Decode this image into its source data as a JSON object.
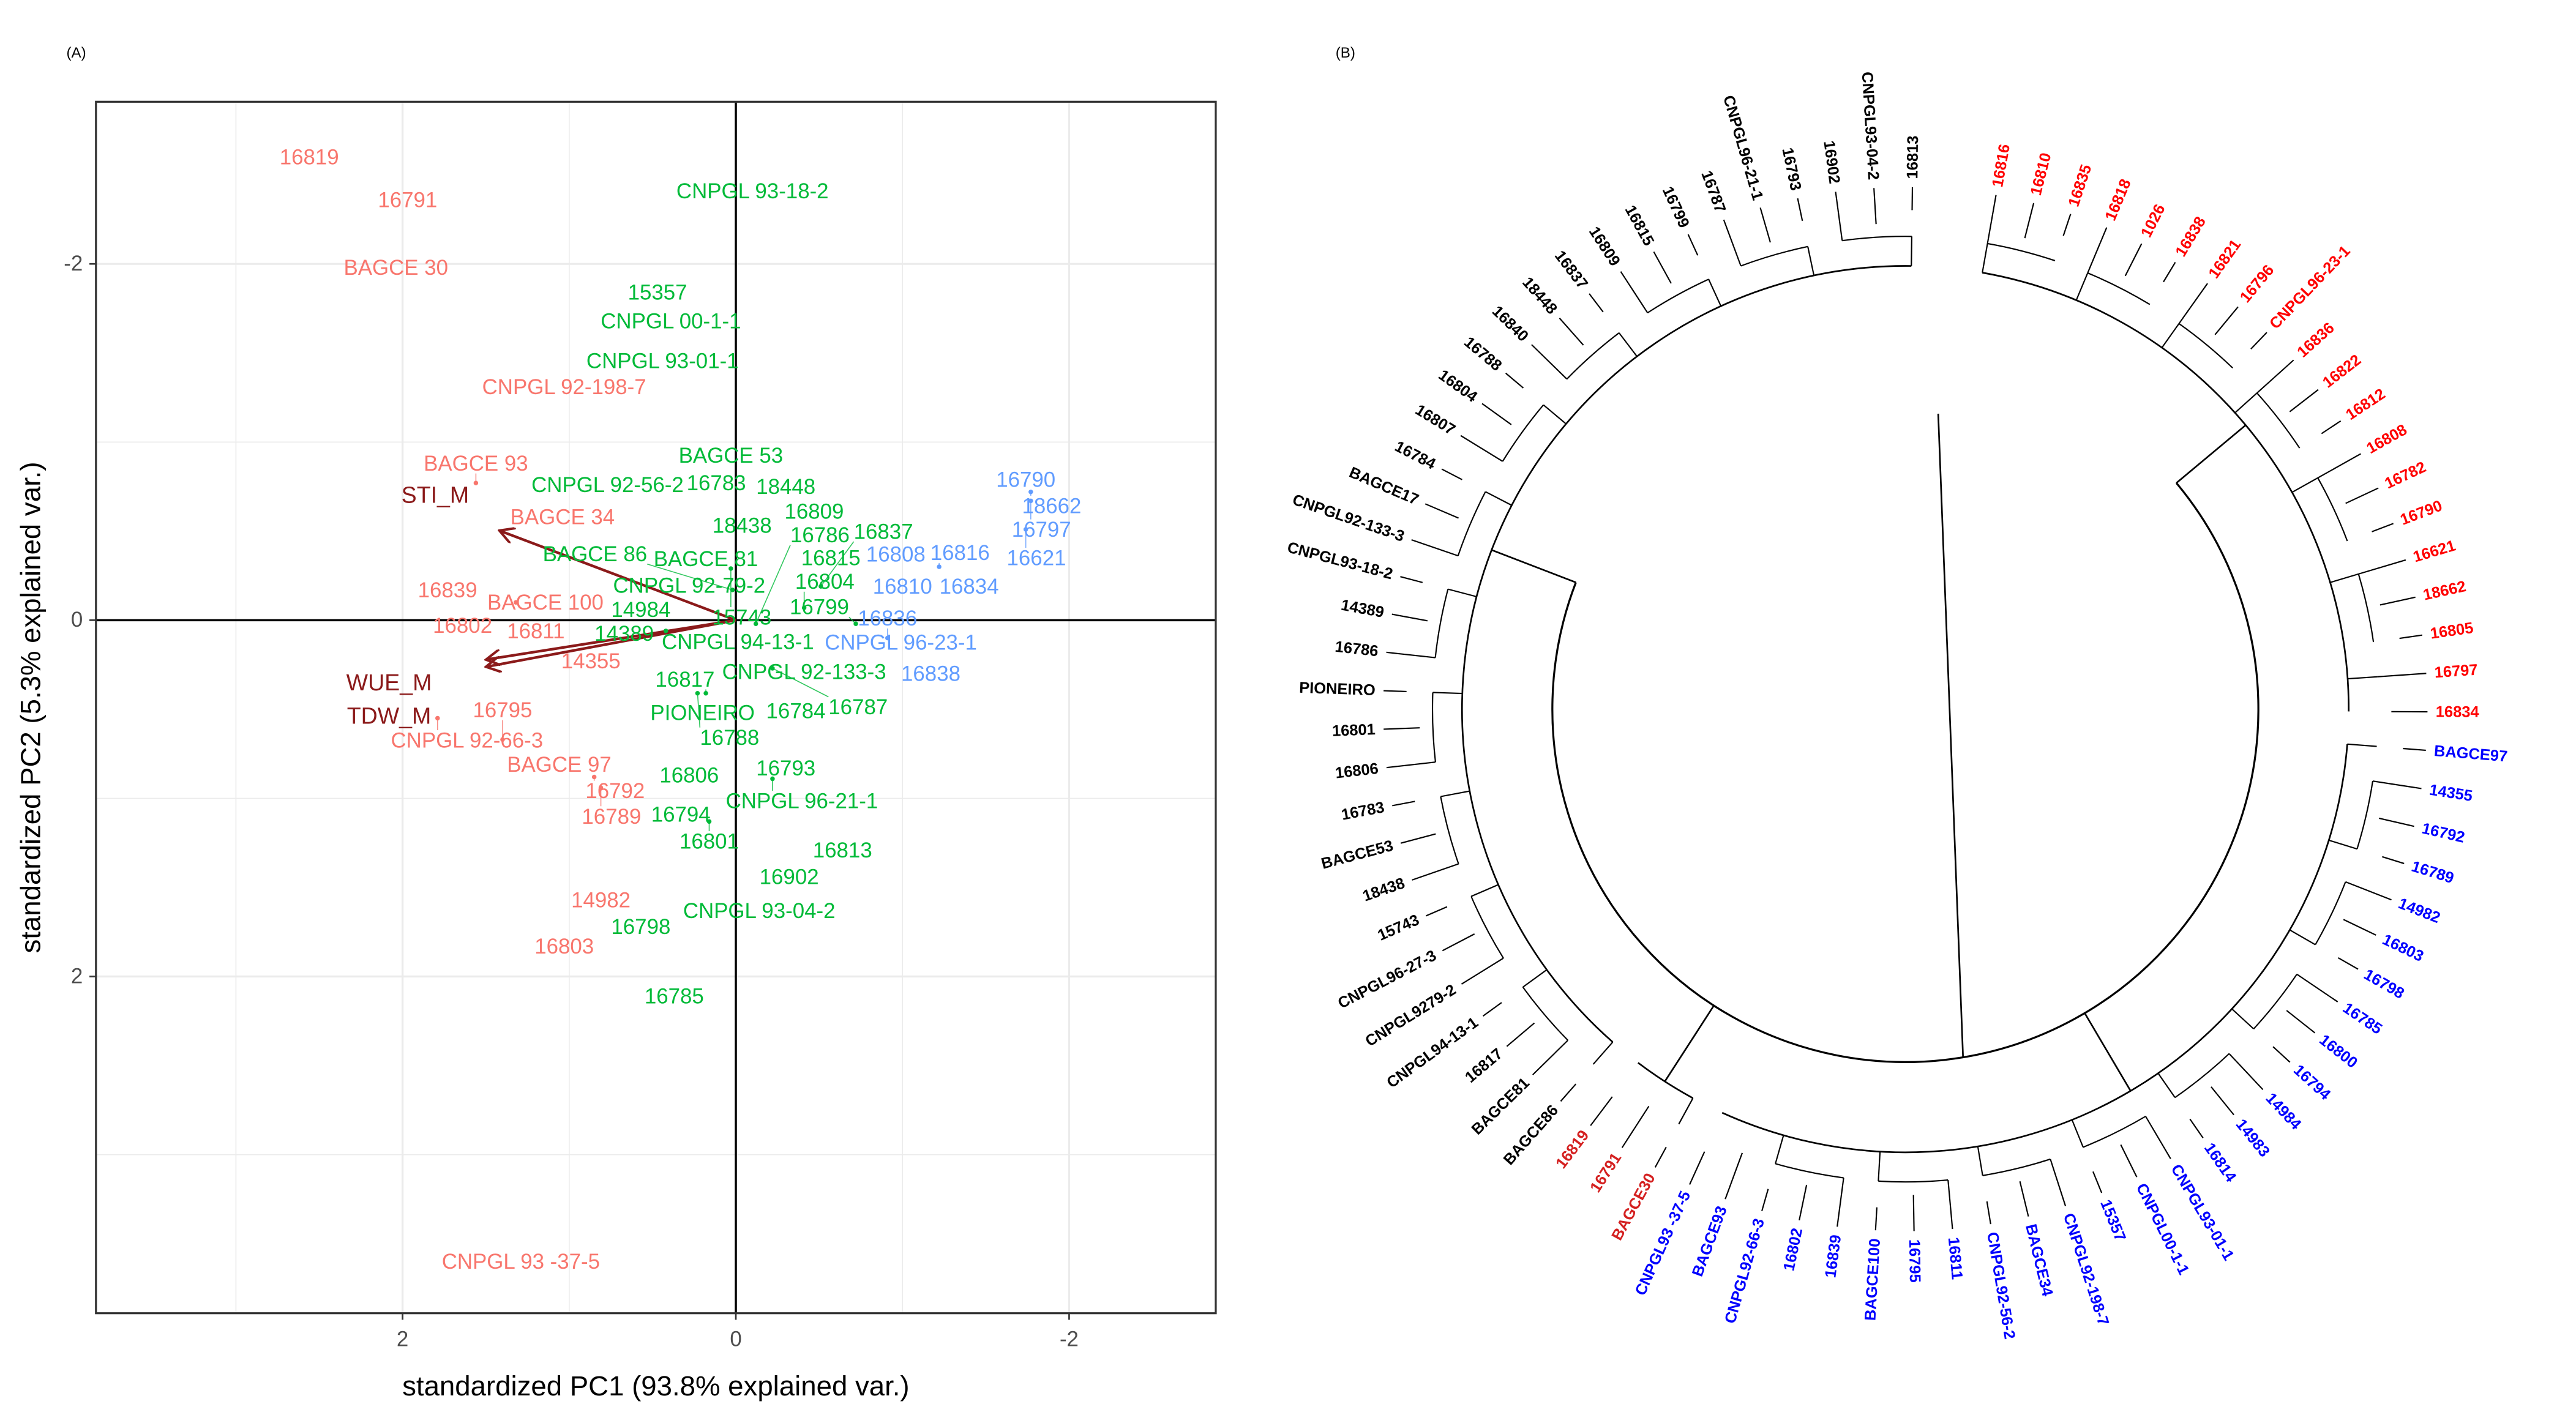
{
  "chart_data": [
    {
      "type": "scatter",
      "panel_label": "(A)",
      "title": "",
      "xlabel": "standardized PC1 (93.8% explained var.)",
      "ylabel": "standardized PC2 (5.3% explained var.)",
      "xlim": [
        3.84,
        -2.88
      ],
      "ylim": [
        -2.91,
        3.89
      ],
      "x_reversed": true,
      "y_reversed": true,
      "xticks": [
        "2",
        "0",
        "-2"
      ],
      "xtick_values": [
        2,
        0,
        -2
      ],
      "yticks": [
        "-2",
        "0",
        "2"
      ],
      "ytick_values": [
        -2,
        0,
        2
      ],
      "grid": true,
      "group_colors": {
        "1": "#F8766D",
        "2": "#00BA38",
        "3": "#619CFF"
      },
      "points": [
        {
          "label": "16819",
          "x": 2.56,
          "y": -2.6,
          "group": "1"
        },
        {
          "label": "16791",
          "x": 1.97,
          "y": -2.36,
          "group": "1"
        },
        {
          "label": "BAGCE 30",
          "x": 2.04,
          "y": -1.98,
          "group": "1"
        },
        {
          "label": "CNPGL 92-198-7",
          "x": 1.03,
          "y": -1.31,
          "group": "1"
        },
        {
          "label": "BAGCE 93",
          "x": 1.56,
          "y": -0.77,
          "group": "1"
        },
        {
          "label": "BAGCE 34",
          "x": 1.04,
          "y": -0.58,
          "group": "1"
        },
        {
          "label": "16839",
          "x": 1.73,
          "y": -0.17,
          "group": "1"
        },
        {
          "label": "BAGCE 100",
          "x": 1.32,
          "y": -0.1,
          "group": "1"
        },
        {
          "label": "16802",
          "x": 1.64,
          "y": 0.03,
          "group": "1"
        },
        {
          "label": "16811",
          "x": 1.2,
          "y": 0.06,
          "group": "1"
        },
        {
          "label": "14355",
          "x": 0.87,
          "y": 0.23,
          "group": "1"
        },
        {
          "label": "CNPGL 92-66-3",
          "x": 1.79,
          "y": 0.55,
          "group": "1"
        },
        {
          "label": "16795",
          "x": 1.4,
          "y": 0.67,
          "group": "1"
        },
        {
          "label": "BAGCE 97",
          "x": 1.06,
          "y": 0.81,
          "group": "1"
        },
        {
          "label": "16792",
          "x": 0.85,
          "y": 0.88,
          "group": "1"
        },
        {
          "label": "16789",
          "x": 0.81,
          "y": 0.94,
          "group": "1"
        },
        {
          "label": "14982",
          "x": 0.81,
          "y": 1.57,
          "group": "1"
        },
        {
          "label": "16803",
          "x": 1.03,
          "y": 1.83,
          "group": "1"
        },
        {
          "label": "CNPGL 93 -37-5",
          "x": 1.29,
          "y": 3.6,
          "group": "1"
        },
        {
          "label": "CNPGL 93-18-2",
          "x": -0.1,
          "y": -2.41,
          "group": "2"
        },
        {
          "label": "15357",
          "x": 0.47,
          "y": -1.84,
          "group": "2"
        },
        {
          "label": "CNPGL 00-1-1",
          "x": 0.39,
          "y": -1.68,
          "group": "2"
        },
        {
          "label": "CNPGL 93-01-1",
          "x": 0.44,
          "y": -1.4,
          "group": "2"
        },
        {
          "label": "BAGCE 53",
          "x": 0.03,
          "y": -0.87,
          "group": "2"
        },
        {
          "label": "16783",
          "x": 0.18,
          "y": -0.81,
          "group": "2"
        },
        {
          "label": "CNPGL 92-56-2",
          "x": 0.77,
          "y": -0.76,
          "group": "2"
        },
        {
          "label": "18448",
          "x": -0.3,
          "y": -0.75,
          "group": "2"
        },
        {
          "label": "18438",
          "x": -0.1,
          "y": -0.57,
          "group": "2"
        },
        {
          "label": "16809",
          "x": -0.47,
          "y": -0.61,
          "group": "2"
        },
        {
          "label": "16815",
          "x": -0.57,
          "y": -0.35,
          "group": "2"
        },
        {
          "label": "BAGCE 81",
          "x": 0.18,
          "y": -0.29,
          "group": "2"
        },
        {
          "label": "15743",
          "x": 0.03,
          "y": -0.29,
          "group": "2"
        },
        {
          "label": "16837",
          "x": -0.51,
          "y": -0.19,
          "group": "2"
        },
        {
          "label": "BAGCE 86",
          "x": 0.02,
          "y": -0.17,
          "group": "2"
        },
        {
          "label": "CNPGL 92-79-2",
          "x": 0.28,
          "y": -0.14,
          "group": "2"
        },
        {
          "label": "16804",
          "x": -0.41,
          "y": -0.07,
          "group": "2"
        },
        {
          "label": "14984",
          "x": 0.57,
          "y": -0.06,
          "group": "2"
        },
        {
          "label": "14389",
          "x": 0.67,
          "y": 0.02,
          "group": "2"
        },
        {
          "label": "CNPGL 94-13-1",
          "x": 0.42,
          "y": 0.06,
          "group": "2"
        },
        {
          "label": "16786",
          "x": -0.12,
          "y": 0.02,
          "group": "2"
        },
        {
          "label": "16799",
          "x": -0.72,
          "y": 0.02,
          "group": "2"
        },
        {
          "label": "CNPGL 92-133-3",
          "x": -0.41,
          "y": 0.29,
          "group": "2"
        },
        {
          "label": "16787",
          "x": -0.22,
          "y": 0.27,
          "group": "2"
        },
        {
          "label": "16817",
          "x": 0.18,
          "y": 0.41,
          "group": "2"
        },
        {
          "label": "16788",
          "x": 0.23,
          "y": 0.41,
          "group": "2"
        },
        {
          "label": "PIONEIRO",
          "x": 0.2,
          "y": 0.52,
          "group": "2"
        },
        {
          "label": "16784",
          "x": -0.36,
          "y": 0.51,
          "group": "2"
        },
        {
          "label": "16806",
          "x": 0.28,
          "y": 0.87,
          "group": "2"
        },
        {
          "label": "16793",
          "x": -0.3,
          "y": 0.83,
          "group": "2"
        },
        {
          "label": "CNPGL 96-21-1",
          "x": -0.22,
          "y": 0.89,
          "group": "2"
        },
        {
          "label": "16794",
          "x": 0.33,
          "y": 1.09,
          "group": "2"
        },
        {
          "label": "16801",
          "x": 0.16,
          "y": 1.13,
          "group": "2"
        },
        {
          "label": "16813",
          "x": -0.64,
          "y": 1.29,
          "group": "2"
        },
        {
          "label": "16902",
          "x": -0.32,
          "y": 1.44,
          "group": "2"
        },
        {
          "label": "CNPGL 93-04-2",
          "x": -0.14,
          "y": 1.63,
          "group": "2"
        },
        {
          "label": "16798",
          "x": 0.57,
          "y": 1.72,
          "group": "2"
        },
        {
          "label": "16785",
          "x": 0.37,
          "y": 2.11,
          "group": "2"
        },
        {
          "label": "16790",
          "x": -1.74,
          "y": -0.79,
          "group": "3"
        },
        {
          "label": "18662",
          "x": -1.77,
          "y": -0.72,
          "group": "3"
        },
        {
          "label": "16797",
          "x": -1.77,
          "y": -0.67,
          "group": "3"
        },
        {
          "label": "16621",
          "x": -1.74,
          "y": -0.51,
          "group": "3"
        },
        {
          "label": "16808",
          "x": -0.96,
          "y": -0.37,
          "group": "3"
        },
        {
          "label": "16816",
          "x": -1.22,
          "y": -0.3,
          "group": "3"
        },
        {
          "label": "16834",
          "x": -1.4,
          "y": -0.19,
          "group": "3"
        },
        {
          "label": "16810",
          "x": -1.0,
          "y": -0.19,
          "group": "3"
        },
        {
          "label": "16836",
          "x": -0.91,
          "y": 0.1,
          "group": "3"
        },
        {
          "label": "CNPGL 96-23-1",
          "x": -0.99,
          "y": 0.18,
          "group": "3"
        },
        {
          "label": "16838",
          "x": -1.17,
          "y": 0.3,
          "group": "3"
        }
      ],
      "arrows": [
        {
          "label": "STI_M",
          "x": 1.41,
          "y": -0.5
        },
        {
          "label": "WUE_M",
          "x": 1.49,
          "y": 0.22
        },
        {
          "label": "TDW_M",
          "x": 1.49,
          "y": 0.26
        }
      ],
      "arrow_color": "#8B1A1A"
    },
    {
      "type": "dendrogram",
      "layout": "circular",
      "panel_label": "(B)",
      "cluster_colors": {
        "red": "#FF0000",
        "blue": "#0000FF",
        "black": "#000000"
      },
      "leaves": [
        {
          "label": "16816",
          "cluster": "red"
        },
        {
          "label": "16810",
          "cluster": "red"
        },
        {
          "label": "16835",
          "cluster": "red"
        },
        {
          "label": "16818",
          "cluster": "red"
        },
        {
          "label": "1026",
          "cluster": "red"
        },
        {
          "label": "16838",
          "cluster": "red"
        },
        {
          "label": "16821",
          "cluster": "red"
        },
        {
          "label": "16796",
          "cluster": "red"
        },
        {
          "label": "CNPGL96-23-1",
          "cluster": "red"
        },
        {
          "label": "16836",
          "cluster": "red"
        },
        {
          "label": "16822",
          "cluster": "red"
        },
        {
          "label": "16812",
          "cluster": "red"
        },
        {
          "label": "16808",
          "cluster": "red"
        },
        {
          "label": "16782",
          "cluster": "red"
        },
        {
          "label": "16790",
          "cluster": "red"
        },
        {
          "label": "16621",
          "cluster": "red"
        },
        {
          "label": "18662",
          "cluster": "red"
        },
        {
          "label": "16805",
          "cluster": "red"
        },
        {
          "label": "16797",
          "cluster": "red"
        },
        {
          "label": "16834",
          "cluster": "red"
        },
        {
          "label": "BAGCE97",
          "cluster": "blue"
        },
        {
          "label": "14355",
          "cluster": "blue"
        },
        {
          "label": "16792",
          "cluster": "blue"
        },
        {
          "label": "16789",
          "cluster": "blue"
        },
        {
          "label": "14982",
          "cluster": "blue"
        },
        {
          "label": "16803",
          "cluster": "blue"
        },
        {
          "label": "16798",
          "cluster": "blue"
        },
        {
          "label": "16785",
          "cluster": "blue"
        },
        {
          "label": "16800",
          "cluster": "blue"
        },
        {
          "label": "16794",
          "cluster": "blue"
        },
        {
          "label": "14984",
          "cluster": "blue"
        },
        {
          "label": "14983",
          "cluster": "blue"
        },
        {
          "label": "16814",
          "cluster": "blue"
        },
        {
          "label": "CNPGL93-01-1",
          "cluster": "blue"
        },
        {
          "label": "CNPGL00-1-1",
          "cluster": "blue"
        },
        {
          "label": "15357",
          "cluster": "blue"
        },
        {
          "label": "CNPGL92-198-7",
          "cluster": "blue"
        },
        {
          "label": "BAGCE34",
          "cluster": "blue"
        },
        {
          "label": "CNPGL92-56-2",
          "cluster": "blue"
        },
        {
          "label": "16811",
          "cluster": "blue"
        },
        {
          "label": "16795",
          "cluster": "blue"
        },
        {
          "label": "BAGCE100",
          "cluster": "blue"
        },
        {
          "label": "16839",
          "cluster": "blue"
        },
        {
          "label": "16802",
          "cluster": "blue"
        },
        {
          "label": "CNPGL92-66-3",
          "cluster": "blue"
        },
        {
          "label": "BAGCE93",
          "cluster": "blue"
        },
        {
          "label": "CNPGL93 -37-5",
          "cluster": "blue"
        },
        {
          "label": "BAGCE30",
          "cluster": "darkred"
        },
        {
          "label": "16791",
          "cluster": "darkred"
        },
        {
          "label": "16819",
          "cluster": "darkred"
        },
        {
          "label": "BAGCE86",
          "cluster": "black"
        },
        {
          "label": "BAGCE81",
          "cluster": "black"
        },
        {
          "label": "16817",
          "cluster": "black"
        },
        {
          "label": "CNPGL94-13-1",
          "cluster": "black"
        },
        {
          "label": "CNPGL9279-2",
          "cluster": "black"
        },
        {
          "label": "CNPGL96-27-3",
          "cluster": "black"
        },
        {
          "label": "15743",
          "cluster": "black"
        },
        {
          "label": "18438",
          "cluster": "black"
        },
        {
          "label": "BAGCE53",
          "cluster": "black"
        },
        {
          "label": "16783",
          "cluster": "black"
        },
        {
          "label": "16806",
          "cluster": "black"
        },
        {
          "label": "16801",
          "cluster": "black"
        },
        {
          "label": "PIONEIRO",
          "cluster": "black"
        },
        {
          "label": "16786",
          "cluster": "black"
        },
        {
          "label": "14389",
          "cluster": "black"
        },
        {
          "label": "CNPGL93-18-2",
          "cluster": "black"
        },
        {
          "label": "CNPGL92-133-3",
          "cluster": "black"
        },
        {
          "label": "BAGCE17",
          "cluster": "black"
        },
        {
          "label": "16784",
          "cluster": "black"
        },
        {
          "label": "16807",
          "cluster": "black"
        },
        {
          "label": "16804",
          "cluster": "black"
        },
        {
          "label": "16788",
          "cluster": "black"
        },
        {
          "label": "16840",
          "cluster": "black"
        },
        {
          "label": "18448",
          "cluster": "black"
        },
        {
          "label": "16837",
          "cluster": "black"
        },
        {
          "label": "16809",
          "cluster": "black"
        },
        {
          "label": "16815",
          "cluster": "black"
        },
        {
          "label": "16799",
          "cluster": "black"
        },
        {
          "label": "16787",
          "cluster": "black"
        },
        {
          "label": "CNPGL96-21-1",
          "cluster": "black"
        },
        {
          "label": "16793",
          "cluster": "black"
        },
        {
          "label": "16902",
          "cluster": "black"
        },
        {
          "label": "CNPGL93-04-2",
          "cluster": "black"
        },
        {
          "label": "16813",
          "cluster": "black"
        }
      ]
    }
  ]
}
